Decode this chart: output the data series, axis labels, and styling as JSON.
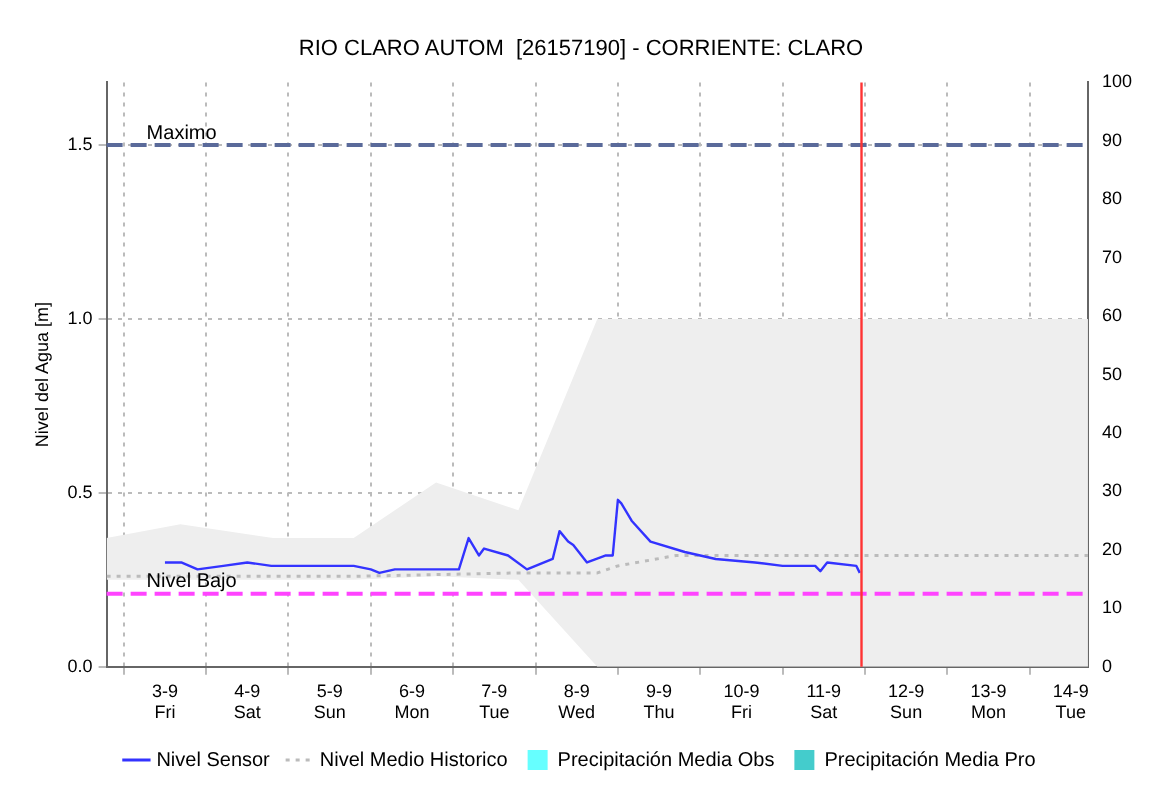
{
  "chart_data": {
    "type": "line",
    "title": "RIO CLARO AUTOM  [26157190] - CORRIENTE: CLARO",
    "ylabel": "Nivel del Agua [m]",
    "xlim": [
      "--09-02T07:00",
      "--09-14T05:00"
    ],
    "xticks": [
      {
        "value": "--09-03",
        "label": "3-9\nFri"
      },
      {
        "value": "--09-04",
        "label": "4-9\nSat"
      },
      {
        "value": "--09-05",
        "label": "5-9\nSun"
      },
      {
        "value": "--09-06",
        "label": "6-9\nMon"
      },
      {
        "value": "--09-07",
        "label": "7-9\nTue"
      },
      {
        "value": "--09-08",
        "label": "8-9\nWed"
      },
      {
        "value": "--09-09",
        "label": "9-9\nThu"
      },
      {
        "value": "--09-10",
        "label": "10-9\nFri"
      },
      {
        "value": "--09-11",
        "label": "11-9\nSat"
      },
      {
        "value": "--09-12",
        "label": "12-9\nSun"
      },
      {
        "value": "--09-13",
        "label": "13-9\nMon"
      },
      {
        "value": "--09-14",
        "label": "14-9\nTue"
      }
    ],
    "ylim": [
      0,
      1.68
    ],
    "yticks": [
      {
        "value": 0,
        "label": "0.0"
      },
      0.5,
      {
        "value": 1,
        "label": "1.0"
      },
      1.5
    ],
    "y2lim": [
      0,
      100
    ],
    "y2ticks": [
      0,
      10,
      20,
      30,
      40,
      50,
      60,
      70,
      80,
      90,
      100
    ],
    "grid": true,
    "legend": "bottom",
    "marker": "none",
    "series": [
      {
        "name": "Nivel Sensor",
        "color": "#3333ff",
        "line_style": "solid",
        "x": [
          "--09-03T00:00",
          "--09-03T04:45",
          "--09-03T09:30",
          "--09-03T17:00",
          "--09-04T00:00",
          "--09-04T07:00",
          "--09-04T19:00",
          "--09-05T07:00",
          "--09-05T12:00",
          "--09-05T14:30",
          "--09-05T19:00",
          "--09-06T05:00",
          "--09-06T13:40",
          "--09-06T16:30",
          "--09-06T19:30",
          "--09-06T21:00",
          "--09-07T04:00",
          "--09-07T09:30",
          "--09-07T17:00",
          "--09-07T19:00",
          "--09-07T21:30",
          "--09-07T23:00",
          "--09-08T03:00",
          "--09-08T08:30",
          "--09-08T10:30",
          "--09-08T12:00",
          "--09-08T13:00",
          "--09-08T16:00",
          "--09-08T21:30",
          "--09-09T07:30",
          "--09-09T16:30",
          "--09-10T04:00",
          "--09-10T12:00",
          "--09-10T21:30",
          "--09-10T23:00",
          "--09-11T01:00",
          "--09-11T09:30",
          "--09-11T10:30"
        ],
        "values": [
          0.3,
          0.3,
          0.28,
          0.29,
          0.3,
          0.29,
          0.29,
          0.29,
          0.28,
          0.27,
          0.28,
          0.28,
          0.28,
          0.37,
          0.32,
          0.34,
          0.32,
          0.28,
          0.31,
          0.39,
          0.36,
          0.35,
          0.3,
          0.32,
          0.32,
          0.48,
          0.47,
          0.42,
          0.36,
          0.33,
          0.31,
          0.3,
          0.29,
          0.29,
          0.275,
          0.3,
          0.29,
          0.27
        ]
      },
      {
        "name": "Nivel Medio Historico",
        "color": "#bbbbbb",
        "line_style": "dotted",
        "x": [
          "--09-02T07:00",
          "--09-03T04:30",
          "--09-04T07:30",
          "--09-05T07:00",
          "--09-06T07:00",
          "--09-07T07:00",
          "--09-08T06:00",
          "--09-08T12:00",
          "--09-09T05:00",
          "--09-14T05:00"
        ],
        "values": [
          0.26,
          0.26,
          0.26,
          0.26,
          0.265,
          0.27,
          0.27,
          0.29,
          0.32,
          0.32
        ],
        "lower": [
          0.25,
          0.25,
          0.25,
          0.25,
          0.26,
          0.25,
          0,
          0,
          0,
          0
        ],
        "upper": [
          0.37,
          0.41,
          0.37,
          0.37,
          0.53,
          0.45,
          1.0,
          1.0,
          1.0,
          1.0
        ]
      },
      {
        "name": "Precipitación Media Obs",
        "type": "bar",
        "axis": "y2",
        "color": "#66ffff"
      },
      {
        "name": "Precipitación Media Pro",
        "type": "bar",
        "axis": "y2",
        "color": "#44cccc"
      }
    ],
    "ref_lines": [
      {
        "axis": "y",
        "value": 1.5,
        "label": "Maximo",
        "color": "#5a6a9a",
        "line_style": "dashed"
      },
      {
        "axis": "y",
        "value": 0.21,
        "label": "Nivel Bajo",
        "color": "#ff44ff",
        "line_style": "dashed"
      },
      {
        "axis": "x",
        "value": "--09-11T11:00",
        "label": null,
        "color": "#ff3333",
        "line_style": "solid"
      }
    ]
  }
}
